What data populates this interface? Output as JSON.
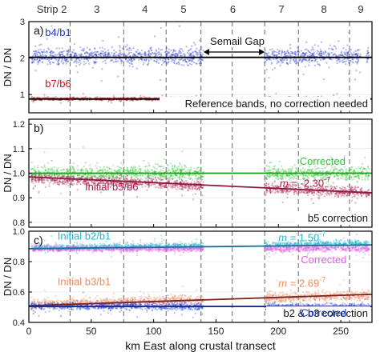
{
  "chart_data": {
    "type": "scatter",
    "x_axis": {
      "label": "km East along crustal transect",
      "range": [
        0,
        275
      ],
      "ticks": [
        0,
        50,
        100,
        150,
        200,
        250
      ]
    },
    "strips": {
      "labels": [
        "Strip 2",
        "3",
        "4",
        "5",
        "6",
        "7",
        "8",
        "9"
      ],
      "boundaries_km": [
        33,
        76,
        110,
        138,
        189,
        216,
        257
      ],
      "gap_marker_km": 163
    },
    "panels": [
      {
        "id": "a",
        "label": "a)",
        "ylabel": "DN / DN",
        "ylim": [
          0.5,
          3.0
        ],
        "yticks": [
          1,
          2,
          3
        ],
        "gap": {
          "label": "Semail Gap",
          "from_km": 140,
          "to_km": 189
        },
        "note": "Reference bands, no correction needed",
        "series": [
          {
            "name": "b4/b1",
            "color": "#1f35c9",
            "mean": 2.05,
            "spread": 0.22,
            "segments": [
              [
                2,
                140
              ],
              [
                189,
                266
              ],
              [
                270,
                273
              ]
            ]
          },
          {
            "name": "b7/b6",
            "color": "#c4161c",
            "mean": 0.88,
            "spread": 0.04,
            "segments": [
              [
                2,
                140
              ],
              [
                189,
                266
              ],
              [
                270,
                273
              ]
            ]
          }
        ],
        "fit_lines": [
          {
            "color": "#000000",
            "points": [
              [
                0,
                2.02
              ],
              [
                275,
                2.02
              ]
            ]
          },
          {
            "color": "#000000",
            "points": [
              [
                0,
                0.88
              ],
              [
                275,
                0.88
              ]
            ]
          }
        ]
      },
      {
        "id": "b",
        "label": "b)",
        "ylabel": "DN / DN",
        "ylim": [
          0.78,
          1.22
        ],
        "yticks": [
          0.8,
          0.9,
          1.0,
          1.1,
          1.2
        ],
        "note": "b5 correction",
        "series": [
          {
            "name": "Corrected",
            "color": "#29c42d",
            "mean_start": 1.0,
            "mean_end": 1.0,
            "spread": 0.03,
            "segments": [
              [
                2,
                140
              ],
              [
                189,
                273
              ]
            ]
          },
          {
            "name": "Initial b5/b6",
            "color": "#b0194e",
            "mean_start": 0.98,
            "mean_end": 0.92,
            "spread": 0.02,
            "segments": [
              [
                2,
                140
              ],
              [
                189,
                273
              ]
            ]
          }
        ],
        "fit_lines": [
          {
            "color": "#1a9c1a",
            "points": [
              [
                0,
                1.0
              ],
              [
                275,
                1.0
              ]
            ]
          },
          {
            "color": "#8b1a3e",
            "points": [
              [
                0,
                0.985
              ],
              [
                275,
                0.92
              ]
            ]
          }
        ],
        "annotations": [
          {
            "text": "Corrected",
            "x_km": 217,
            "y": 1.035,
            "color": "#29c42d"
          },
          {
            "text": "Initial b5/b6",
            "x_km": 45,
            "y": 0.93,
            "color": "#b0194e"
          },
          {
            "slope_text": "= -2.30",
            "slope_exp": "-7",
            "x_km": 201,
            "y": 0.945,
            "color": "#b0194e"
          }
        ]
      },
      {
        "id": "c",
        "label": "c)",
        "ylabel": "DN / DN",
        "ylim": [
          0.4,
          1.0
        ],
        "yticks": [
          0.4,
          0.6,
          0.8,
          1.0
        ],
        "note": "b2 & b3 correction",
        "series": [
          {
            "name": "Initial b2/b1",
            "color": "#1bb7cc",
            "mean_start": 0.89,
            "mean_end": 0.92,
            "spread": 0.02,
            "segments": [
              [
                2,
                140
              ],
              [
                189,
                273
              ]
            ]
          },
          {
            "name": "Corrected (b2/b1)",
            "color": "#e35ee3",
            "mean_start": 0.885,
            "mean_end": 0.885,
            "spread": 0.02,
            "segments": [
              [
                2,
                140
              ],
              [
                189,
                273
              ]
            ]
          },
          {
            "name": "Initial b3/b1",
            "color": "#f08a5d",
            "mean_start": 0.52,
            "mean_end": 0.58,
            "spread": 0.03,
            "segments": [
              [
                2,
                140
              ],
              [
                189,
                273
              ]
            ]
          },
          {
            "name": "Corrected (b3/b1)",
            "color": "#1f45e0",
            "mean_start": 0.51,
            "mean_end": 0.5,
            "spread": 0.025,
            "segments": [
              [
                2,
                140
              ],
              [
                189,
                273
              ]
            ]
          }
        ],
        "fit_lines": [
          {
            "color": "#1a6f9c",
            "points": [
              [
                0,
                0.885
              ],
              [
                275,
                0.91
              ]
            ]
          },
          {
            "color": "#7a2424",
            "points": [
              [
                0,
                0.51
              ],
              [
                275,
                0.585
              ]
            ]
          },
          {
            "color": "#1b2a8c",
            "points": [
              [
                0,
                0.505
              ],
              [
                275,
                0.505
              ]
            ]
          }
        ],
        "annotations": [
          {
            "text": "Initial b2/b1",
            "x_km": 23,
            "y": 0.945,
            "color": "#1bb7cc"
          },
          {
            "slope_text": "= 1.50",
            "slope_exp": "-7",
            "x_km": 200,
            "y": 0.935,
            "color": "#1bb7cc"
          },
          {
            "text": "Corrected",
            "x_km": 218,
            "y": 0.79,
            "color": "#e35ee3"
          },
          {
            "text": "Initial b3/b1",
            "x_km": 23,
            "y": 0.645,
            "color": "#f08a5d"
          },
          {
            "slope_text": "= 2.69",
            "slope_exp": "-7",
            "x_km": 200,
            "y": 0.635,
            "color": "#f08a5d"
          },
          {
            "text": "Corrected",
            "x_km": 218,
            "y": 0.44,
            "color": "#1f45e0"
          }
        ]
      }
    ]
  }
}
